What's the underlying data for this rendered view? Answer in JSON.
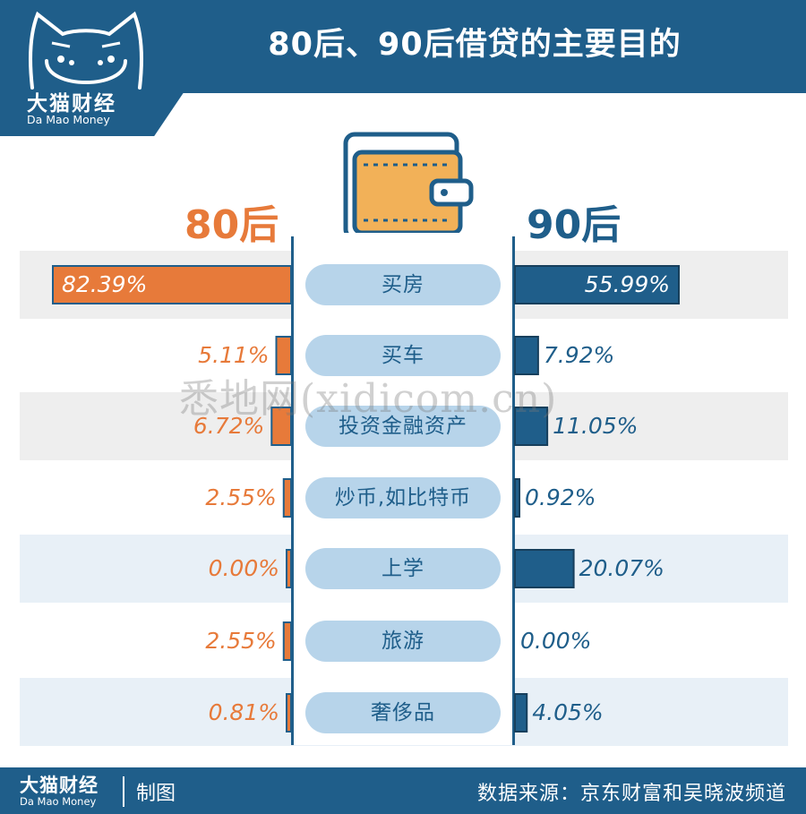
{
  "header": {
    "title": "80后、90后借贷的主要目的"
  },
  "brand": {
    "name_cn": "大猫财经",
    "name_en": "Da Mao Money"
  },
  "watermark": "悉地网(xidicom.cn)",
  "footer": {
    "credit": "制图",
    "source": "数据来源：京东财富和吴晓波频道"
  },
  "colors": {
    "brand_blue": "#1f5e8a",
    "orange": "#e77a3a",
    "pill": "#b7d4ea",
    "band_gray": "#eeeeee",
    "band_blue": "#e8f0f7"
  },
  "icons": {
    "logo": "cat-face-icon",
    "center": "wallet-icon"
  },
  "chart_data": {
    "type": "bar",
    "orientation": "horizontal-butterfly",
    "title": "80后、90后借贷的主要目的",
    "categories": [
      "买房",
      "买车",
      "投资金融资产",
      "炒币,如比特币",
      "上学",
      "旅游",
      "奢侈品"
    ],
    "series": [
      {
        "name": "80后",
        "values": [
          82.39,
          5.11,
          6.72,
          2.55,
          0.0,
          2.55,
          0.81
        ],
        "labels": [
          "82.39%",
          "5.11%",
          "6.72%",
          "2.55%",
          "0.00%",
          "2.55%",
          "0.81%"
        ],
        "color": "#e77a3a"
      },
      {
        "name": "90后",
        "values": [
          55.99,
          7.92,
          11.05,
          0.92,
          20.07,
          0.0,
          4.05
        ],
        "labels": [
          "55.99%",
          "7.92%",
          "11.05%",
          "0.92%",
          "20.07%",
          "0.00%",
          "4.05%"
        ],
        "color": "#1f5e8a"
      }
    ],
    "unit": "%",
    "grid": false
  }
}
